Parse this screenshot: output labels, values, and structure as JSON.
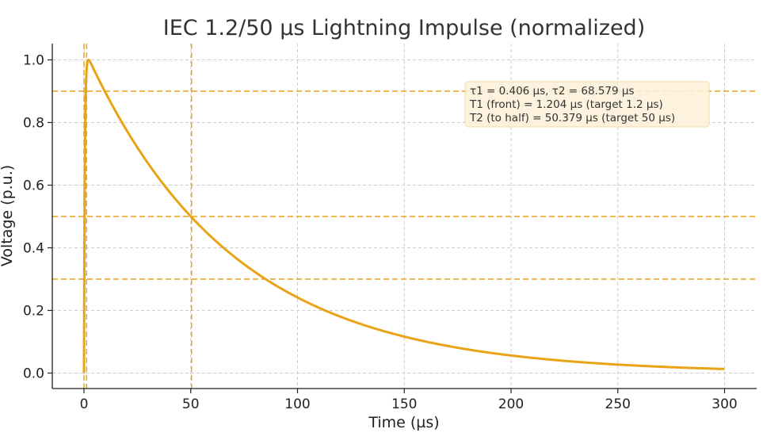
{
  "chart_data": {
    "type": "line",
    "title": "IEC 1.2/50 µs Lightning Impulse (normalized)",
    "xlabel": "Time (µs)",
    "ylabel": "Voltage (p.u.)",
    "xlim": [
      -15,
      315
    ],
    "ylim": [
      -0.05,
      1.05
    ],
    "xticks": [
      0,
      50,
      100,
      150,
      200,
      250,
      300
    ],
    "yticks": [
      0.0,
      0.2,
      0.4,
      0.6,
      0.8,
      1.0
    ],
    "xtick_labels": [
      "0",
      "50",
      "100",
      "150",
      "200",
      "250",
      "300"
    ],
    "ytick_labels": [
      "0.0",
      "0.2",
      "0.4",
      "0.6",
      "0.8",
      "1.0"
    ],
    "grid": true,
    "series": [
      {
        "color": "#e8a317",
        "tau1_us": 0.406,
        "tau2_us": 68.579,
        "t_start_us": 0,
        "t_end_us": 300,
        "x": [
          0,
          0.5,
          1,
          1.5,
          2,
          3,
          5,
          10,
          20,
          30,
          40,
          50,
          60,
          80,
          100,
          125,
          150,
          175,
          200,
          225,
          250,
          275,
          300
        ],
        "y": [
          0,
          0.71,
          0.92,
          0.985,
          1.0,
          0.984,
          0.956,
          0.888,
          0.765,
          0.659,
          0.568,
          0.489,
          0.421,
          0.313,
          0.232,
          0.161,
          0.111,
          0.077,
          0.053,
          0.037,
          0.026,
          0.018,
          0.012
        ]
      }
    ],
    "reference_lines": {
      "color": "#e8a317",
      "horizontal": [
        0.9,
        0.5,
        0.3
      ],
      "vertical": [
        0,
        1.204,
        50.379
      ]
    },
    "annotation": {
      "lines": [
        "τ1 = 0.406 µs, τ2 = 68.579 µs",
        "T1 (front) = 1.204 µs (target 1.2 µs)",
        "T2 (to half) = 50.379 µs (target 50 µs)"
      ],
      "placement": "top-right",
      "background": "#fdf0d8",
      "border": "#f3d9a8"
    }
  }
}
